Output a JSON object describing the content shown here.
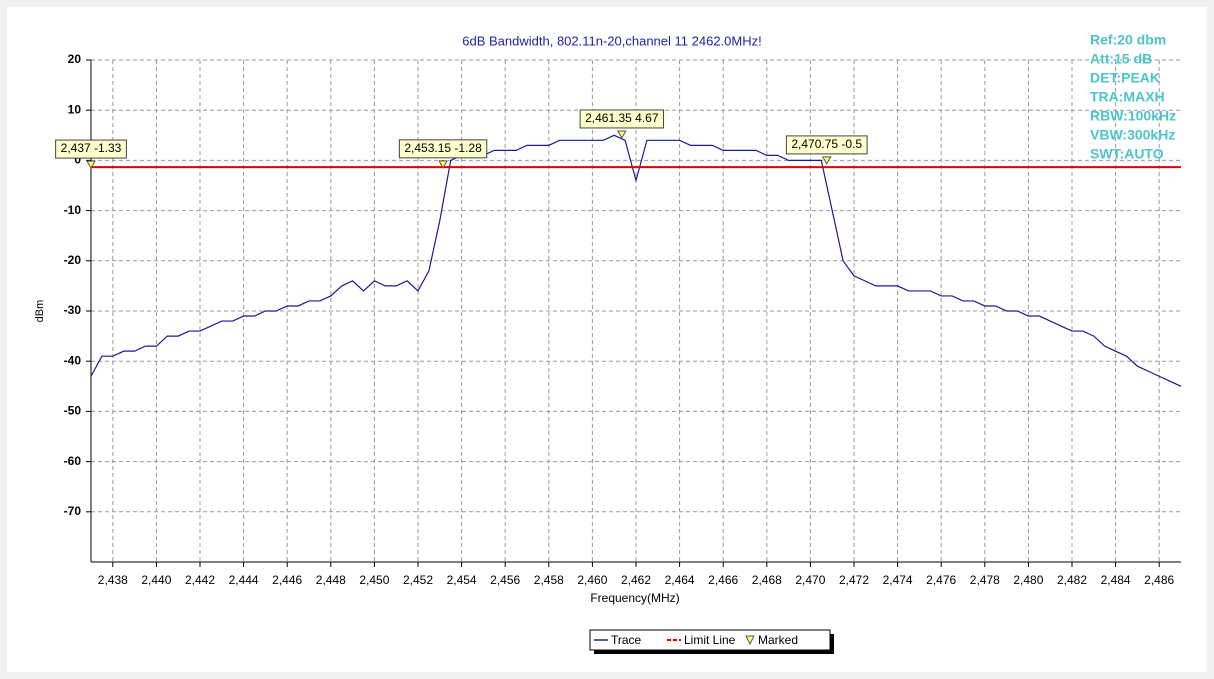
{
  "chart_data": {
    "type": "line",
    "title": "6dB Bandwidth, 802.11n-20,channel 11  2462.0MHz!",
    "x_label": "Frequency(MHz)",
    "y_label": "dBm",
    "info": [
      "Ref:20 dbm",
      "Att:15 dB",
      "DET:PEAK",
      "TRA:MAXH",
      "RBW:100kHz",
      "VBW:300kHz",
      "SWT:AUTO"
    ],
    "xlim": [
      2437,
      2487
    ],
    "ylim": [
      -80,
      20
    ],
    "xticks": [
      {
        "value": 2438,
        "label": "2,438"
      },
      {
        "value": 2440,
        "label": "2,440"
      },
      {
        "value": 2442,
        "label": "2,442"
      },
      {
        "value": 2444,
        "label": "2,444"
      },
      {
        "value": 2446,
        "label": "2,446"
      },
      {
        "value": 2448,
        "label": "2,448"
      },
      {
        "value": 2450,
        "label": "2,450"
      },
      {
        "value": 2452,
        "label": "2,452"
      },
      {
        "value": 2454,
        "label": "2,454"
      },
      {
        "value": 2456,
        "label": "2,456"
      },
      {
        "value": 2458,
        "label": "2,458"
      },
      {
        "value": 2460,
        "label": "2,460"
      },
      {
        "value": 2462,
        "label": "2,462"
      },
      {
        "value": 2464,
        "label": "2,464"
      },
      {
        "value": 2466,
        "label": "2,466"
      },
      {
        "value": 2468,
        "label": "2,468"
      },
      {
        "value": 2470,
        "label": "2,470"
      },
      {
        "value": 2472,
        "label": "2,472"
      },
      {
        "value": 2474,
        "label": "2,474"
      },
      {
        "value": 2476,
        "label": "2,476"
      },
      {
        "value": 2478,
        "label": "2,478"
      },
      {
        "value": 2480,
        "label": "2,480"
      },
      {
        "value": 2482,
        "label": "2,482"
      },
      {
        "value": 2484,
        "label": "2,484"
      },
      {
        "value": 2486,
        "label": "2,486"
      }
    ],
    "yticks": [
      20,
      10,
      0,
      -10,
      -20,
      -30,
      -40,
      -50,
      -60,
      -70
    ],
    "grid": true,
    "series": [
      {
        "name": "Trace",
        "color": "#1a1a9a",
        "x": [
          2437,
          2437.5,
          2438,
          2438.5,
          2439,
          2439.5,
          2440,
          2440.5,
          2441,
          2441.5,
          2442,
          2442.5,
          2443,
          2443.5,
          2444,
          2444.5,
          2445,
          2445.5,
          2446,
          2446.5,
          2447,
          2447.5,
          2448,
          2448.5,
          2449,
          2449.5,
          2450,
          2450.5,
          2451,
          2451.5,
          2452,
          2452.5,
          2453,
          2453.5,
          2454,
          2454.5,
          2455,
          2455.5,
          2456,
          2456.5,
          2457,
          2457.5,
          2458,
          2458.5,
          2459,
          2459.5,
          2460,
          2460.5,
          2461,
          2461.5,
          2462,
          2462.5,
          2463,
          2463.5,
          2464,
          2464.5,
          2465,
          2465.5,
          2466,
          2466.5,
          2467,
          2467.5,
          2468,
          2468.5,
          2469,
          2469.5,
          2470,
          2470.5,
          2471,
          2471.5,
          2472,
          2472.5,
          2473,
          2473.5,
          2474,
          2474.5,
          2475,
          2475.5,
          2476,
          2476.5,
          2477,
          2477.5,
          2478,
          2478.5,
          2479,
          2479.5,
          2480,
          2480.5,
          2481,
          2481.5,
          2482,
          2482.5,
          2483,
          2483.5,
          2484,
          2484.5,
          2485,
          2485.5,
          2486,
          2486.5,
          2487
        ],
        "values": [
          -43,
          -39,
          -39,
          -38,
          -38,
          -37,
          -37,
          -35,
          -35,
          -34,
          -34,
          -33,
          -32,
          -32,
          -31,
          -31,
          -30,
          -30,
          -29,
          -29,
          -28,
          -28,
          -27,
          -25,
          -24,
          -26,
          -24,
          -25,
          -25,
          -24,
          -26,
          -22,
          -12,
          0,
          1,
          1,
          1,
          2,
          2,
          2,
          3,
          3,
          3,
          4,
          4,
          4,
          4,
          4,
          5,
          4,
          -4,
          4,
          4,
          4,
          4,
          3,
          3,
          3,
          2,
          2,
          2,
          2,
          1,
          1,
          0,
          0,
          0,
          0,
          -10,
          -20,
          -23,
          -24,
          -25,
          -25,
          -25,
          -26,
          -26,
          -26,
          -27,
          -27,
          -28,
          -28,
          -29,
          -29,
          -30,
          -30,
          -31,
          -31,
          -32,
          -33,
          -34,
          -34,
          -35,
          -37,
          -38,
          -39,
          -41,
          -42,
          -43,
          -44,
          -45
        ]
      }
    ],
    "limit_line": {
      "name": "Limit Line",
      "value": -1.33,
      "color": "#e00000"
    },
    "marker_legend": "Marked",
    "markers": [
      {
        "x": 2437,
        "y": -1.33,
        "label": "2,437 -1.33"
      },
      {
        "x": 2453.15,
        "y": -1.28,
        "label": "2,453.15 -1.28"
      },
      {
        "x": 2461.35,
        "y": 4.67,
        "label": "2,461.35 4.67"
      },
      {
        "x": 2470.75,
        "y": -0.5,
        "label": "2,470.75 -0.5"
      }
    ]
  }
}
